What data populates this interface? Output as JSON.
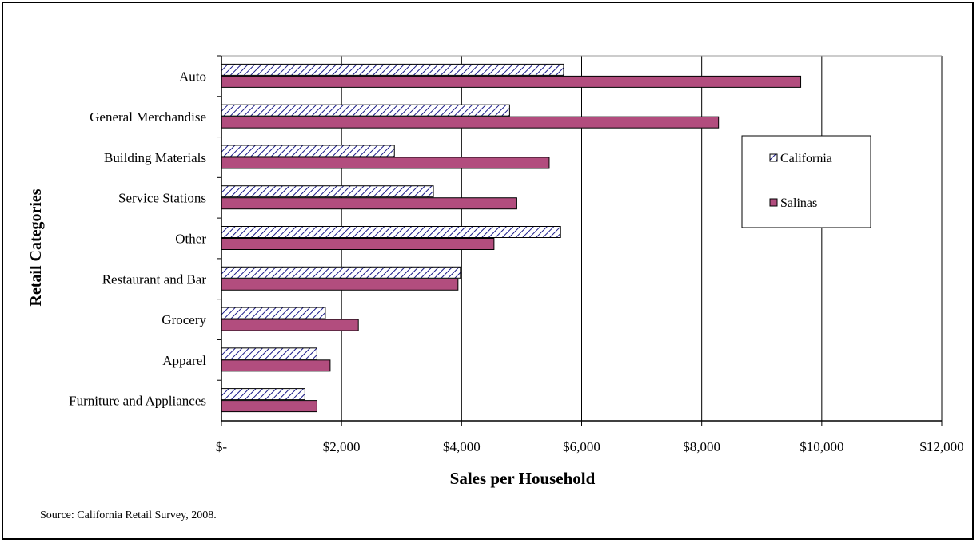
{
  "chart_data": {
    "type": "bar",
    "orientation": "horizontal",
    "categories": [
      "Auto",
      "General Merchandise",
      "Building Materials",
      "Service Stations",
      "Other",
      "Restaurant and Bar",
      "Grocery",
      "Apparel",
      "Furniture and Appliances"
    ],
    "series": [
      {
        "name": "California",
        "values": [
          5700,
          4800,
          2880,
          3530,
          5650,
          3980,
          1730,
          1590,
          1390
        ],
        "color": "#ffffff",
        "pattern": "diagonal-hatch-blue",
        "hatch_color": "#1a1a8a"
      },
      {
        "name": "Salinas",
        "values": [
          9650,
          8280,
          5460,
          4920,
          4540,
          3940,
          2280,
          1810,
          1590
        ],
        "color": "#b24d7e"
      }
    ],
    "xlabel": "Sales per Household",
    "ylabel": "Retail Categories",
    "xlim": [
      0,
      12000
    ],
    "xticks": [
      0,
      2000,
      4000,
      6000,
      8000,
      10000,
      12000
    ],
    "xtick_labels": [
      "$-",
      "$2,000",
      "$4,000",
      "$6,000",
      "$8,000",
      "$10,000",
      "$12,000"
    ],
    "grid": "vertical",
    "legend_position": "right"
  },
  "source_note": "Source: California Retail Survey, 2008."
}
